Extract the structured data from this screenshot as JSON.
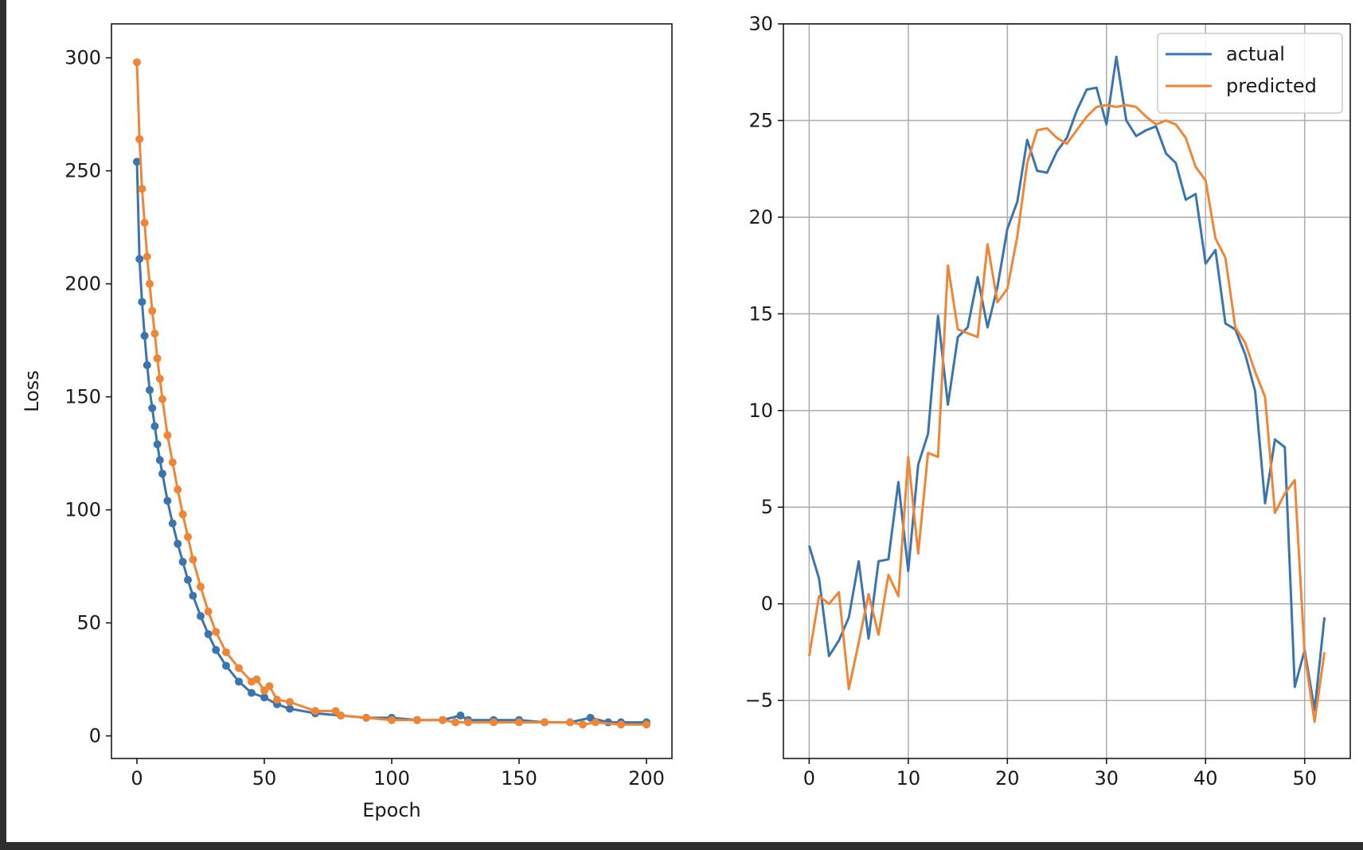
{
  "chart_data": [
    {
      "type": "scatter",
      "xlabel": "Epoch",
      "ylabel": "Loss",
      "xlim": [
        -10,
        210
      ],
      "ylim": [
        -10,
        315
      ],
      "xticks": [
        0,
        50,
        100,
        150,
        200
      ],
      "yticks": [
        0,
        50,
        100,
        150,
        200,
        250,
        300
      ],
      "grid": false,
      "markers": true,
      "series": [
        {
          "color": "#3a75af",
          "x": [
            0,
            1,
            2,
            3,
            4,
            5,
            6,
            7,
            8,
            9,
            10,
            12,
            14,
            16,
            18,
            20,
            22,
            25,
            28,
            31,
            35,
            40,
            45,
            50,
            55,
            60,
            70,
            80,
            90,
            100,
            110,
            120,
            127,
            130,
            140,
            150,
            160,
            170,
            178,
            185,
            190,
            200
          ],
          "y": [
            254,
            211,
            192,
            177,
            164,
            153,
            145,
            137,
            129,
            122,
            116,
            104,
            94,
            85,
            77,
            69,
            62,
            53,
            45,
            38,
            31,
            24,
            19,
            17,
            14,
            12,
            10,
            9,
            8,
            8,
            7,
            7,
            9,
            7,
            7,
            7,
            6,
            6,
            8,
            6,
            6,
            6
          ]
        },
        {
          "color": "#ef8636",
          "x": [
            0,
            1,
            2,
            3,
            4,
            5,
            6,
            7,
            8,
            9,
            10,
            12,
            14,
            16,
            18,
            20,
            22,
            25,
            28,
            31,
            35,
            40,
            45,
            47,
            50,
            52,
            55,
            60,
            70,
            78,
            80,
            90,
            100,
            110,
            120,
            125,
            130,
            140,
            150,
            160,
            170,
            175,
            180,
            190,
            200
          ],
          "y": [
            298,
            264,
            242,
            227,
            212,
            200,
            188,
            178,
            167,
            158,
            149,
            133,
            121,
            109,
            98,
            88,
            78,
            66,
            55,
            46,
            37,
            30,
            24,
            25,
            20,
            22,
            16,
            15,
            11,
            11,
            9,
            8,
            7,
            7,
            7,
            6,
            6,
            6,
            6,
            6,
            6,
            5,
            6,
            5,
            5
          ]
        }
      ]
    },
    {
      "type": "line",
      "xlim": [
        -2.6,
        54.6
      ],
      "ylim": [
        -8,
        30
      ],
      "xticks": [
        0,
        10,
        20,
        30,
        40,
        50
      ],
      "yticks": [
        -5,
        0,
        5,
        10,
        15,
        20,
        25,
        30
      ],
      "grid": true,
      "legend": "top-right",
      "series": [
        {
          "name": "actual",
          "color": "#3a75af",
          "x": [
            0,
            1,
            2,
            3,
            4,
            5,
            6,
            7,
            8,
            9,
            10,
            11,
            12,
            13,
            14,
            15,
            16,
            17,
            18,
            19,
            20,
            21,
            22,
            23,
            24,
            25,
            26,
            27,
            28,
            29,
            30,
            31,
            32,
            33,
            34,
            35,
            36,
            37,
            38,
            39,
            40,
            41,
            42,
            43,
            44,
            45,
            46,
            47,
            48,
            49,
            50,
            51,
            52
          ],
          "y": [
            3.0,
            1.3,
            -2.7,
            -1.9,
            -0.7,
            2.2,
            -1.8,
            2.2,
            2.3,
            6.3,
            1.7,
            7.2,
            8.8,
            14.9,
            10.3,
            13.8,
            14.3,
            16.9,
            14.3,
            16.4,
            19.4,
            20.8,
            24.0,
            22.4,
            22.3,
            23.4,
            24.1,
            25.5,
            26.6,
            26.7,
            24.8,
            28.3,
            25.0,
            24.2,
            24.5,
            24.7,
            23.3,
            22.8,
            20.9,
            21.2,
            17.6,
            18.3,
            14.5,
            14.2,
            12.9,
            11.0,
            5.2,
            8.5,
            8.1,
            -4.3,
            -2.4,
            -5.5,
            -0.7
          ]
        },
        {
          "name": "predicted",
          "color": "#ef8636",
          "x": [
            0,
            1,
            2,
            3,
            4,
            5,
            6,
            7,
            8,
            9,
            10,
            11,
            12,
            13,
            14,
            15,
            16,
            17,
            18,
            19,
            20,
            21,
            22,
            23,
            24,
            25,
            26,
            27,
            28,
            29,
            30,
            31,
            32,
            33,
            34,
            35,
            36,
            37,
            38,
            39,
            40,
            41,
            42,
            43,
            44,
            45,
            46,
            47,
            48,
            49,
            50,
            51,
            52
          ],
          "y": [
            -2.7,
            0.4,
            0.0,
            0.6,
            -4.4,
            -2.0,
            0.5,
            -1.6,
            1.5,
            0.4,
            7.6,
            2.6,
            7.8,
            7.6,
            17.5,
            14.2,
            14.0,
            13.8,
            18.6,
            15.6,
            16.3,
            19.0,
            22.8,
            24.5,
            24.6,
            24.1,
            23.8,
            24.5,
            25.2,
            25.7,
            25.8,
            25.7,
            25.8,
            25.7,
            25.2,
            24.8,
            25.0,
            24.8,
            24.1,
            22.6,
            21.9,
            18.9,
            17.9,
            14.3,
            13.5,
            12.0,
            10.7,
            4.7,
            5.7,
            6.4,
            -2.6,
            -6.1,
            -2.5
          ]
        }
      ]
    }
  ]
}
